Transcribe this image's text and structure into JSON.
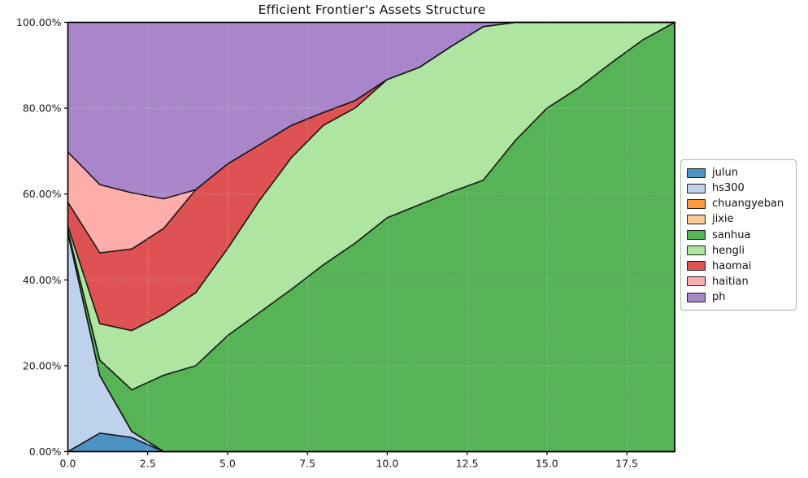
{
  "title": "Efficient Frontier's Assets Structure",
  "background_color": "#ffffff",
  "chart_data": {
    "type": "area",
    "stacked": true,
    "title": "Efficient Frontier's Assets Structure",
    "xlabel": "",
    "ylabel": "",
    "xlim": [
      0,
      19
    ],
    "ylim": [
      0,
      100
    ],
    "grid": true,
    "grid_style": "dotted",
    "legend_position": "outside-center-right",
    "edge_color": "#141414",
    "fill_alpha": 0.8,
    "x": [
      0,
      1,
      2,
      3,
      4,
      5,
      6,
      7,
      8,
      9,
      10,
      11,
      12,
      13,
      14,
      15,
      16,
      17,
      18,
      19
    ],
    "x_ticks": {
      "values": [
        0,
        2.5,
        5,
        7.5,
        10,
        12.5,
        15,
        17.5
      ],
      "labels": [
        "0.0",
        "2.5",
        "5.0",
        "7.5",
        "10.0",
        "12.5",
        "15.0",
        "17.5"
      ]
    },
    "y_ticks": {
      "values": [
        0,
        20,
        40,
        60,
        80,
        100
      ],
      "labels": [
        "0.00%",
        "20.00%",
        "40.00%",
        "60.00%",
        "80.00%",
        "100.00%"
      ]
    },
    "series": [
      {
        "name": "julun",
        "color": "#1f77b4",
        "values": [
          0,
          4.3,
          3.3,
          0,
          0,
          0,
          0,
          0,
          0,
          0,
          0,
          0,
          0,
          0,
          0,
          0,
          0,
          0,
          0,
          0
        ]
      },
      {
        "name": "hs300",
        "color": "#aec7e8",
        "values": [
          51,
          13.4,
          1.4,
          0,
          0,
          0,
          0,
          0,
          0,
          0,
          0,
          0,
          0,
          0,
          0,
          0,
          0,
          0,
          0,
          0
        ]
      },
      {
        "name": "chuangyeban",
        "color": "#ff7f0e",
        "values": [
          0,
          0,
          0,
          0,
          0,
          0,
          0,
          0,
          0,
          0,
          0,
          0,
          0,
          0,
          0,
          0,
          0,
          0,
          0,
          0
        ]
      },
      {
        "name": "jixie",
        "color": "#ffbb78",
        "values": [
          0,
          0,
          0,
          0,
          0,
          0,
          0,
          0,
          0,
          0,
          0,
          0,
          0,
          0,
          0,
          0,
          0,
          0,
          0,
          0
        ]
      },
      {
        "name": "sanhua",
        "color": "#2ca02c",
        "values": [
          0.5,
          3.6,
          9.7,
          17.8,
          20,
          27,
          32.4,
          37.8,
          43.5,
          48.6,
          54.5,
          57.5,
          60.5,
          63.2,
          72.4,
          80,
          84.8,
          90.5,
          95.9,
          100
        ]
      },
      {
        "name": "hengli",
        "color": "#98df8a",
        "values": [
          1,
          8.5,
          13.8,
          14.2,
          17,
          20.3,
          26.1,
          30.7,
          32.5,
          31.5,
          32.2,
          32,
          33.9,
          35.8,
          27.6,
          20,
          15.2,
          9.5,
          4.1,
          0
        ]
      },
      {
        "name": "haomai",
        "color": "#d62728",
        "values": [
          5.6,
          16.5,
          19,
          20,
          24,
          19.7,
          13,
          7.5,
          3,
          1.7,
          0,
          0,
          0,
          0,
          0,
          0,
          0,
          0,
          0,
          0
        ]
      },
      {
        "name": "haitian",
        "color": "#ff9896",
        "values": [
          11.7,
          15.9,
          13.1,
          6.9,
          0,
          0,
          0,
          0,
          0,
          0,
          0,
          0,
          0,
          0,
          0,
          0,
          0,
          0,
          0,
          0
        ]
      },
      {
        "name": "ph",
        "color": "#9467bd",
        "values": [
          30.2,
          37.8,
          39.7,
          41.1,
          39,
          33,
          28.5,
          24,
          21,
          18.2,
          13.3,
          10.5,
          5.6,
          1,
          0,
          0,
          0,
          0,
          0,
          0
        ]
      }
    ]
  }
}
